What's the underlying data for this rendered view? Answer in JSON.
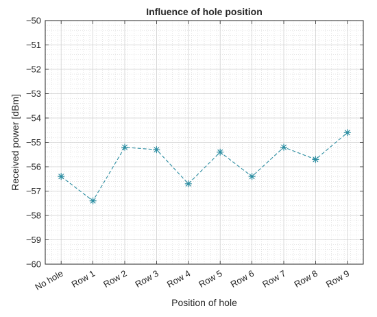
{
  "chart_data": {
    "type": "line",
    "title": "Influence of hole position",
    "xlabel": "Position of hole",
    "ylabel": "Received power [dBm]",
    "categories": [
      "No hole",
      "Row 1",
      "Row 2",
      "Row 3",
      "Row 4",
      "Row 5",
      "Row 6",
      "Row 7",
      "Row 8",
      "Row 9"
    ],
    "series": [
      {
        "values": [
          -56.4,
          -57.4,
          -55.2,
          -55.3,
          -56.7,
          -55.4,
          -56.4,
          -55.2,
          -55.7,
          -54.6
        ],
        "color": "#2b8ca0",
        "line_style": "dashed",
        "marker": "asterisk"
      }
    ],
    "ylim": [
      -60,
      -50
    ],
    "yticks": [
      -50,
      -51,
      -52,
      -53,
      -54,
      -55,
      -56,
      -57,
      -58,
      -59,
      -60
    ],
    "grid": "major and minor"
  }
}
